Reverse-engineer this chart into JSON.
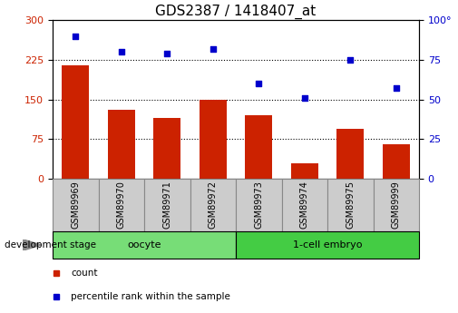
{
  "title": "GDS2387 / 1418407_at",
  "samples": [
    "GSM89969",
    "GSM89970",
    "GSM89971",
    "GSM89972",
    "GSM89973",
    "GSM89974",
    "GSM89975",
    "GSM89999"
  ],
  "counts": [
    215,
    130,
    115,
    150,
    120,
    30,
    95,
    65
  ],
  "percentile_ranks": [
    90,
    80,
    79,
    82,
    60,
    51,
    75,
    57
  ],
  "bar_color": "#cc2200",
  "scatter_color": "#0000cc",
  "left_ylim": [
    0,
    300
  ],
  "right_ylim": [
    0,
    100
  ],
  "left_yticks": [
    0,
    75,
    150,
    225,
    300
  ],
  "right_yticks": [
    0,
    25,
    50,
    75,
    100
  ],
  "right_yticklabels": [
    "0",
    "25",
    "50",
    "75",
    "100°"
  ],
  "groups": [
    {
      "label": "oocyte",
      "indices": [
        0,
        1,
        2,
        3
      ],
      "color": "#77dd77"
    },
    {
      "label": "1-cell embryo",
      "indices": [
        4,
        5,
        6,
        7
      ],
      "color": "#44cc44"
    }
  ],
  "group_label_prefix": "development stage",
  "legend_items": [
    {
      "label": "count",
      "color": "#cc2200"
    },
    {
      "label": "percentile rank within the sample",
      "color": "#0000cc"
    }
  ],
  "title_fontsize": 11,
  "tick_label_fontsize": 8,
  "background_color": "#ffffff",
  "grid_color": "#000000",
  "bar_width": 0.6,
  "sample_box_color": "#cccccc",
  "sample_box_edge_color": "#888888"
}
